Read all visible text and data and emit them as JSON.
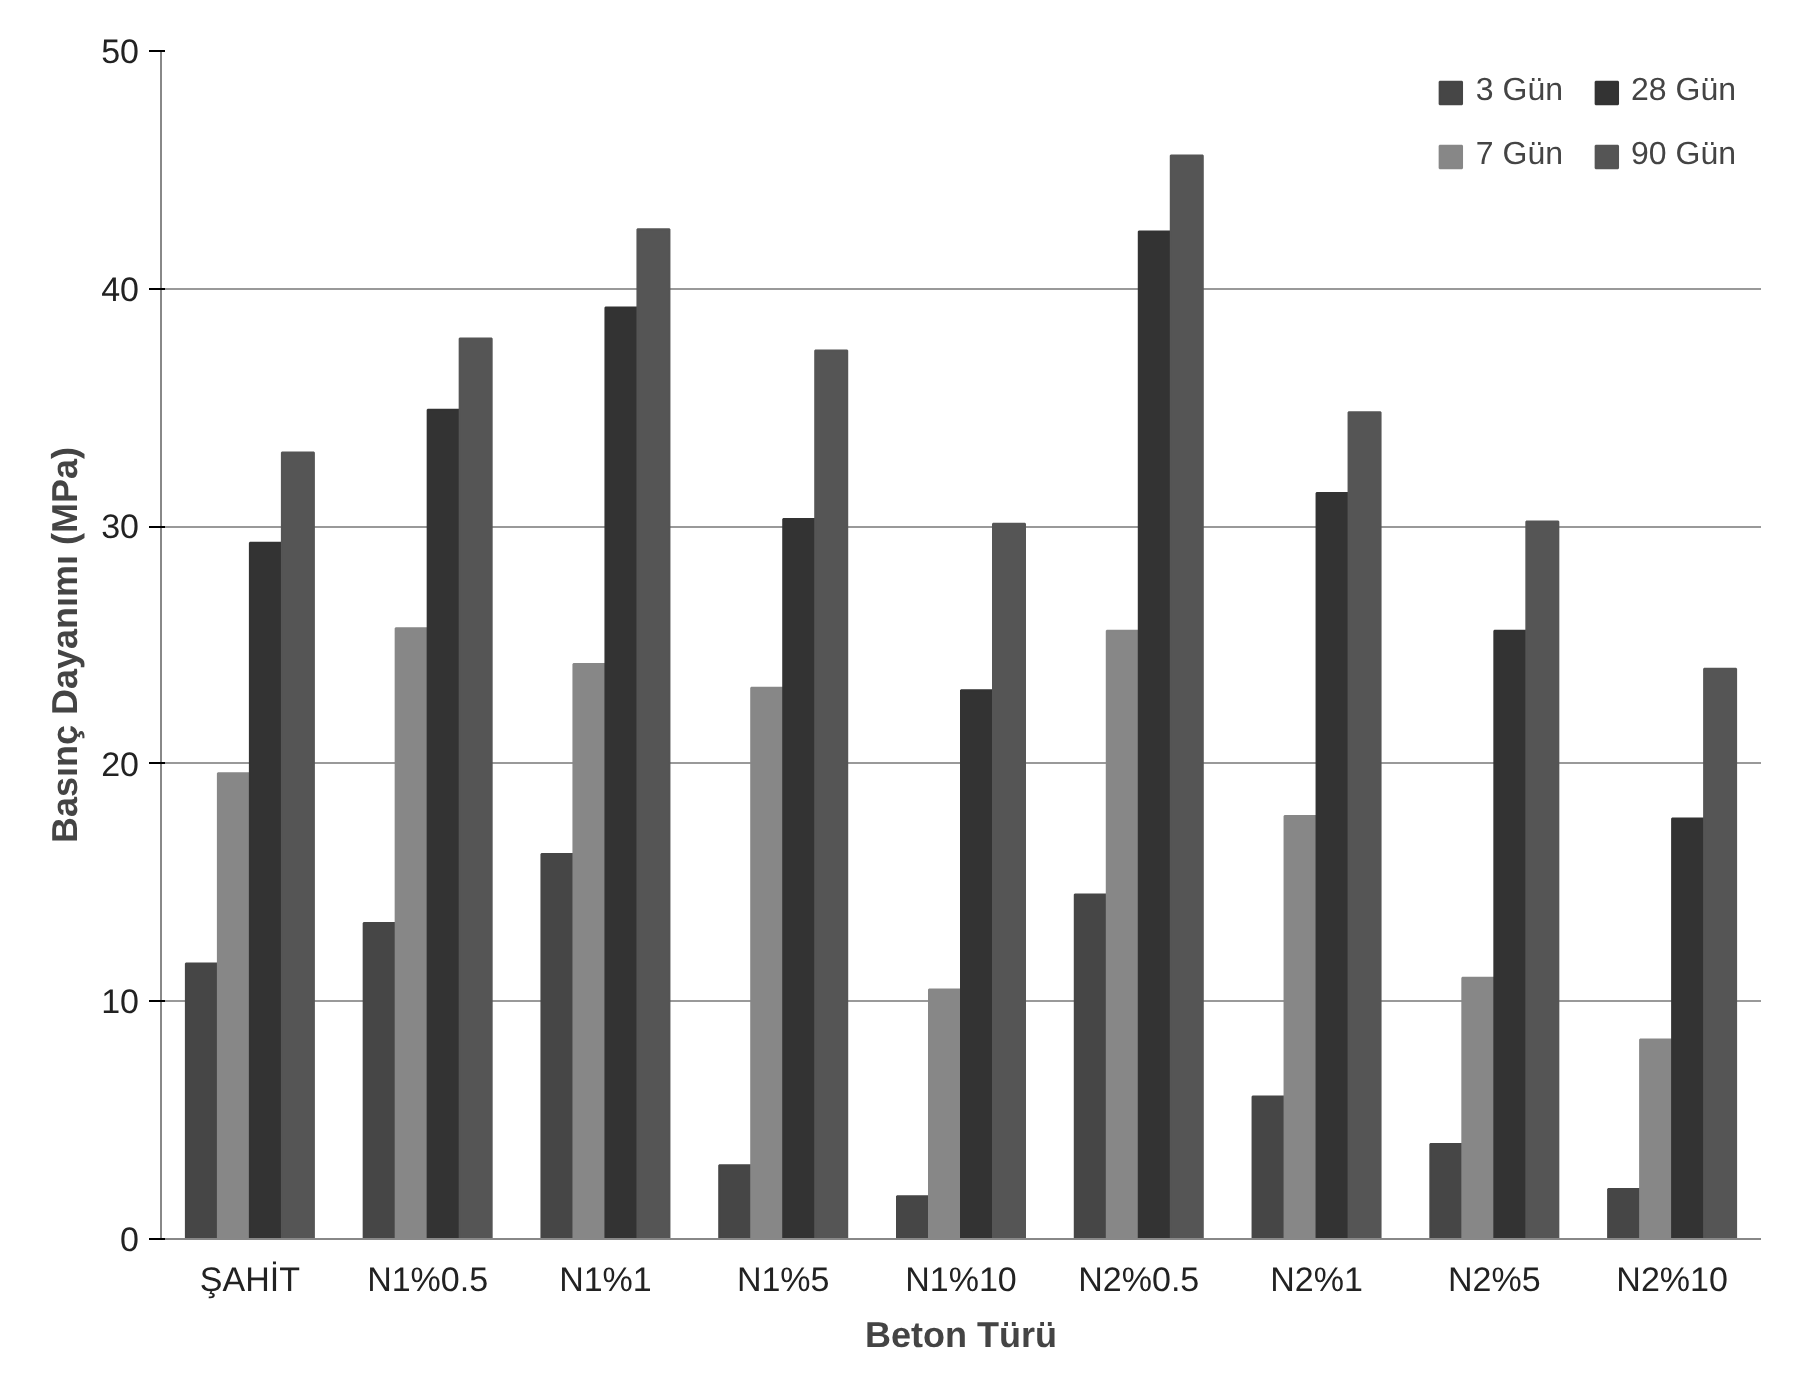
{
  "chart_data": {
    "type": "bar",
    "xlabel": "Beton Türü",
    "ylabel": "Basınç Dayanımı (MPa)",
    "categories": [
      "ŞAHİT",
      "N1%0.5",
      "N1%1",
      "N1%5",
      "N1%10",
      "N2%0.5",
      "N2%1",
      "N2%5",
      "N2%10"
    ],
    "series": [
      {
        "name": "3 Gün",
        "color": "#464646",
        "values": [
          11.6,
          13.3,
          16.2,
          3.1,
          1.8,
          14.5,
          6.0,
          4.0,
          2.1
        ]
      },
      {
        "name": "7 Gün",
        "color": "#878787",
        "values": [
          19.6,
          25.7,
          24.2,
          23.2,
          10.5,
          25.6,
          17.8,
          11.0,
          8.4
        ]
      },
      {
        "name": "28 Gün",
        "color": "#333333",
        "values": [
          29.3,
          34.9,
          39.2,
          30.3,
          23.1,
          42.4,
          31.4,
          25.6,
          17.7
        ]
      },
      {
        "name": "90 Gün",
        "color": "#555555",
        "values": [
          33.1,
          37.9,
          42.5,
          37.4,
          30.1,
          45.6,
          34.8,
          30.2,
          24.0
        ]
      }
    ],
    "ylim": [
      0,
      50
    ],
    "yticks": [
      0,
      10,
      20,
      30,
      40,
      50
    ],
    "grid": "y",
    "legend": "top right"
  }
}
